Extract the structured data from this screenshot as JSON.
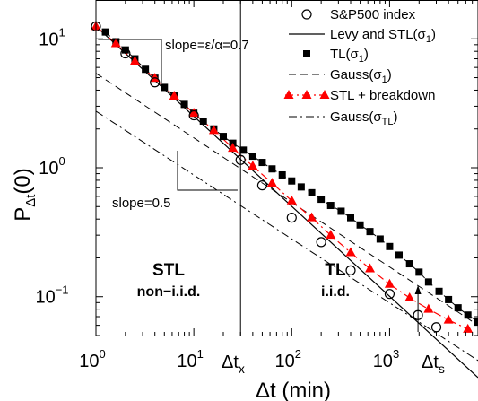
{
  "chart_data": {
    "type": "scatter",
    "xscale": "log",
    "yscale": "log",
    "xlim": [
      1,
      8000
    ],
    "ylim": [
      0.05,
      20
    ],
    "xlabel": "Δt (min)",
    "ylabel": "P_Δt(0)",
    "x_ticks": [
      {
        "value": 1,
        "base": "10",
        "exp": "0"
      },
      {
        "value": 10,
        "base": "10",
        "exp": "1"
      },
      {
        "value": 100,
        "base": "10",
        "exp": "2"
      },
      {
        "value": 1000,
        "base": "10",
        "exp": "3"
      }
    ],
    "y_ticks": [
      {
        "value": 0.1,
        "base": "10",
        "exp": "−1"
      },
      {
        "value": 1,
        "base": "10",
        "exp": "0"
      },
      {
        "value": 10,
        "base": "10",
        "exp": "1"
      }
    ],
    "legend_position": "top-right",
    "series": [
      {
        "name": "S&P500 index",
        "kind": "open-circles",
        "x": [
          1,
          2,
          4,
          10,
          30,
          50,
          100,
          200,
          400,
          1000,
          1950,
          3000
        ],
        "y": [
          12.5,
          7.7,
          4.6,
          2.55,
          1.15,
          0.73,
          0.41,
          0.265,
          0.16,
          0.105,
          0.072,
          0.058
        ]
      },
      {
        "name": "Levy and STL(σ₁)",
        "kind": "solid-line",
        "x": [
          1,
          8000
        ],
        "y": [
          12.5,
          0.0236
        ]
      },
      {
        "name": "TL(σ₁)",
        "kind": "filled-squares",
        "x": [
          1.25,
          1.6,
          2,
          2.5,
          3.2,
          4,
          5,
          6.3,
          8,
          10,
          12.5,
          16,
          20,
          25,
          32,
          40,
          50,
          63,
          80,
          100,
          125,
          160,
          200,
          250,
          320,
          400,
          500,
          630,
          800,
          1000,
          1250,
          1600,
          2000,
          2500,
          3200,
          4000,
          5000,
          6300,
          8000
        ],
        "y": [
          11.3,
          9.5,
          8.2,
          7.0,
          5.8,
          4.95,
          4.2,
          3.6,
          3.1,
          2.65,
          2.3,
          2.0,
          1.75,
          1.55,
          1.37,
          1.23,
          1.1,
          0.98,
          0.88,
          0.79,
          0.71,
          0.64,
          0.57,
          0.51,
          0.46,
          0.41,
          0.36,
          0.32,
          0.28,
          0.245,
          0.21,
          0.18,
          0.155,
          0.13,
          0.11,
          0.095,
          0.082,
          0.072,
          0.064
        ]
      },
      {
        "name": "Gauss(σ₁)",
        "kind": "dashed-line",
        "x": [
          1,
          8000
        ],
        "y": [
          5.4,
          0.06
        ]
      },
      {
        "name": "STL + breakdown",
        "kind": "red-triangles-dashdot",
        "x": [
          1,
          1.6,
          2.5,
          4,
          6.3,
          10,
          16,
          25,
          40,
          63,
          100,
          160,
          250,
          400,
          630,
          1000,
          1600,
          2500,
          4000,
          6300
        ],
        "y": [
          12.5,
          9.2,
          6.7,
          4.95,
          3.6,
          2.65,
          1.95,
          1.42,
          1.03,
          0.76,
          0.555,
          0.41,
          0.3,
          0.22,
          0.165,
          0.125,
          0.098,
          0.08,
          0.066,
          0.056
        ]
      },
      {
        "name": "Gauss(σTL)",
        "kind": "dashdot-line",
        "x": [
          1,
          8000
        ],
        "y": [
          2.75,
          0.032
        ]
      }
    ],
    "annotations": {
      "slope_top": "slope=ε/α=0.7",
      "slope_bottom": "slope=0.5",
      "stl_title": "STL",
      "stl_sub": "non−i.i.d.",
      "tl_title": "TL",
      "tl_sub": "i.i.d.",
      "dtx_main": "Δt",
      "dtx_sub": "x",
      "dts_main": "Δt",
      "dts_sub": "s"
    },
    "crossover_x": 30,
    "breakdown_x": 1950,
    "colors": {
      "stl_breakdown": "#ff0000",
      "axes": "#000000"
    }
  },
  "legend_items": [
    {
      "main": "S&P500 index",
      "sub": ""
    },
    {
      "main": "Levy and STL(σ",
      "sub": "1",
      "close": ")"
    },
    {
      "main": "TL(σ",
      "sub": "1",
      "close": ")"
    },
    {
      "main": "Gauss(σ",
      "sub": "1",
      "close": ")"
    },
    {
      "main": "STL + breakdown",
      "sub": ""
    },
    {
      "main": "Gauss(σ",
      "sub": "TL",
      "close": ")"
    }
  ],
  "ylabel_main": "P",
  "ylabel_sub": "Δt",
  "ylabel_tail": "(0)"
}
